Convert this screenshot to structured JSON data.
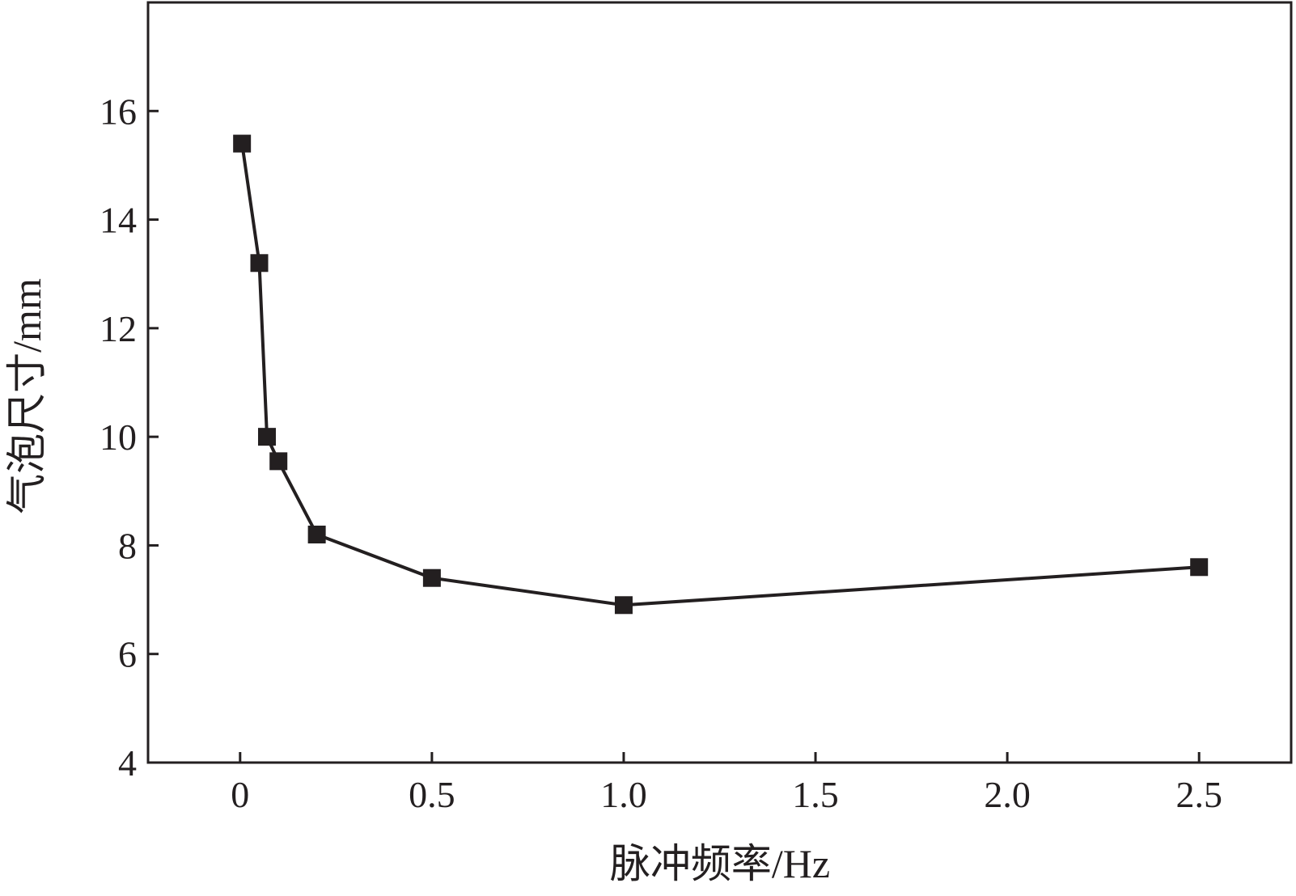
{
  "chart_data": {
    "type": "line",
    "xlabel": "脉冲频率/Hz",
    "ylabel": "气泡尺寸/mm",
    "xlim": [
      -0.24,
      2.74
    ],
    "ylim": [
      4,
      18
    ],
    "x_ticks": [
      0,
      0.5,
      1.0,
      1.5,
      2.0,
      2.5
    ],
    "x_tick_labels": [
      "0",
      "0.5",
      "1.0",
      "1.5",
      "2.0",
      "2.5"
    ],
    "y_ticks": [
      4,
      6,
      8,
      10,
      12,
      14,
      16
    ],
    "y_tick_labels": [
      "4",
      "6",
      "8",
      "10",
      "12",
      "14",
      "16"
    ],
    "grid": false,
    "legend": "none",
    "marker": "square",
    "color": "#231f20",
    "series": [
      {
        "x": [
          0.005,
          0.05,
          0.07,
          0.1,
          0.2,
          0.5,
          1.0,
          2.5
        ],
        "y": [
          15.4,
          13.2,
          10.0,
          9.55,
          8.2,
          7.4,
          6.9,
          7.6
        ]
      }
    ]
  }
}
